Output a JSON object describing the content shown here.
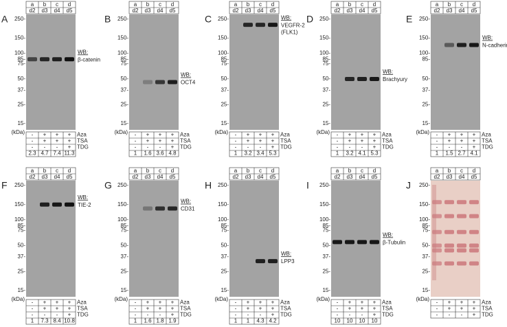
{
  "panels": [
    {
      "letter": "A",
      "lanes": [
        "a",
        "b",
        "c",
        "d"
      ],
      "days": [
        "d2",
        "d3",
        "d4",
        "d5"
      ],
      "markers": [
        "250-",
        "150-",
        "100-",
        "85-",
        "75-",
        "50-",
        "37-",
        "25-",
        "15-"
      ],
      "unit": "(kDa)",
      "wb": "WB:",
      "target": [
        "β-catenin"
      ],
      "treatments": [
        {
          "signs": [
            "-",
            "+",
            "+",
            "+"
          ],
          "label": "Aza"
        },
        {
          "signs": [
            "-",
            "+",
            "+",
            "+"
          ],
          "label": "TSA"
        },
        {
          "signs": [
            "-",
            "-",
            "-",
            "+"
          ],
          "label": "TDG"
        }
      ],
      "quant": [
        "2.3",
        "4.7",
        "7.4",
        "11.3"
      ]
    },
    {
      "letter": "B",
      "lanes": [
        "a",
        "b",
        "c",
        "d"
      ],
      "days": [
        "d2",
        "d3",
        "d4",
        "d5"
      ],
      "markers": [
        "250-",
        "150-",
        "100-",
        "85-",
        "75-",
        "50-",
        "37-",
        "25-",
        "15-"
      ],
      "unit": "(kDa)",
      "wb": "WB:",
      "target": [
        "OCT4"
      ],
      "treatments": [
        {
          "signs": [
            "-",
            "+",
            "+",
            "+"
          ],
          "label": "Aza"
        },
        {
          "signs": [
            "-",
            "+",
            "+",
            "+"
          ],
          "label": "TSA"
        },
        {
          "signs": [
            "-",
            "-",
            "-",
            "+"
          ],
          "label": "TDG"
        }
      ],
      "quant": [
        "1",
        "1.6",
        "3.6",
        "4.8"
      ]
    },
    {
      "letter": "C",
      "lanes": [
        "a",
        "b",
        "c",
        "d"
      ],
      "days": [
        "d2",
        "d3",
        "d4",
        "d5"
      ],
      "markers": [
        "250-",
        "150-",
        "100-",
        "85-",
        "75-",
        "50-",
        "37-",
        "25-",
        "15-"
      ],
      "unit": "(kDa)",
      "wb": "WB:",
      "target": [
        "VEGFR-2",
        "(FLK1)"
      ],
      "treatments": [
        {
          "signs": [
            "-",
            "+",
            "+",
            "+"
          ],
          "label": "Aza"
        },
        {
          "signs": [
            "-",
            "+",
            "+",
            "+"
          ],
          "label": "TSA"
        },
        {
          "signs": [
            "-",
            "-",
            "-",
            "+"
          ],
          "label": "TDG"
        }
      ],
      "quant": [
        "1",
        "3.2",
        "3.4",
        "5.3"
      ]
    },
    {
      "letter": "D",
      "lanes": [
        "a",
        "b",
        "c",
        "d"
      ],
      "days": [
        "d2",
        "d3",
        "d4",
        "d5"
      ],
      "markers": [
        "250-",
        "150-",
        "100-",
        "85-",
        "75-",
        "50-",
        "37-",
        "25-",
        "15-"
      ],
      "unit": "(kDa)",
      "wb": "WB:",
      "target": [
        "Brachyury"
      ],
      "treatments": [
        {
          "signs": [
            "-",
            "+",
            "+",
            "+"
          ],
          "label": "Aza"
        },
        {
          "signs": [
            "-",
            "+",
            "+",
            "+"
          ],
          "label": "TSA"
        },
        {
          "signs": [
            "-",
            "-",
            "-",
            "+"
          ],
          "label": "TDG"
        }
      ],
      "quant": [
        "1",
        "3.2",
        "4.1",
        "5.3"
      ]
    },
    {
      "letter": "E",
      "lanes": [
        "a",
        "b",
        "c",
        "d"
      ],
      "days": [
        "d2",
        "d3",
        "d4",
        "d5"
      ],
      "markers": [
        "250-",
        "150-",
        "100-",
        "85-",
        "50-",
        "37-",
        "25-",
        "15-"
      ],
      "unit": "(kDa)",
      "wb": "WB:",
      "target": [
        "N-cadherin"
      ],
      "treatments": [
        {
          "signs": [
            "-",
            "+",
            "+",
            "+"
          ],
          "label": "Aza"
        },
        {
          "signs": [
            "-",
            "+",
            "+",
            "+"
          ],
          "label": "TSA"
        },
        {
          "signs": [
            "-",
            "-",
            "-",
            "+"
          ],
          "label": "TDG"
        }
      ],
      "quant": [
        "1",
        "1.5",
        "2.7",
        "4.1"
      ]
    },
    {
      "letter": "F",
      "lanes": [
        "a",
        "b",
        "c",
        "d"
      ],
      "days": [
        "d2",
        "d3",
        "d4",
        "d5"
      ],
      "markers": [
        "250-",
        "150-",
        "100-",
        "85-",
        "75-",
        "50-",
        "37-",
        "25-",
        "15-"
      ],
      "unit": "(kDa)",
      "wb": "WB:",
      "target": [
        "TIE-2"
      ],
      "treatments": [
        {
          "signs": [
            "-",
            "+",
            "+",
            "+"
          ],
          "label": "Aza"
        },
        {
          "signs": [
            "-",
            "+",
            "+",
            "+"
          ],
          "label": "TSA"
        },
        {
          "signs": [
            "-",
            "-",
            "-",
            "+"
          ],
          "label": "TDG"
        }
      ],
      "quant": [
        "1",
        "7.3",
        "8.4",
        "10.8"
      ]
    },
    {
      "letter": "G",
      "lanes": [
        "a",
        "b",
        "c",
        "d"
      ],
      "days": [
        "d2",
        "d3",
        "d4",
        "d5"
      ],
      "markers": [
        "250-",
        "150-",
        "100-",
        "85-",
        "75-",
        "50-",
        "37-",
        "25-",
        "15-"
      ],
      "unit": "(kDa)",
      "wb": "WB:",
      "target": [
        "CD31"
      ],
      "treatments": [
        {
          "signs": [
            "-",
            "+",
            "+",
            "+"
          ],
          "label": "Aza"
        },
        {
          "signs": [
            "-",
            "+",
            "+",
            "+"
          ],
          "label": "TSA"
        },
        {
          "signs": [
            "-",
            "-",
            "-",
            "+"
          ],
          "label": "TDG"
        }
      ],
      "quant": [
        "1",
        "1.6",
        "1.8",
        "1.9"
      ]
    },
    {
      "letter": "H",
      "lanes": [
        "a",
        "b",
        "c",
        "d"
      ],
      "days": [
        "d2",
        "d3",
        "d4",
        "d5"
      ],
      "markers": [
        "250-",
        "150-",
        "100-",
        "85-",
        "75-",
        "50-",
        "37-",
        "25-",
        "15-"
      ],
      "unit": "(kDa)",
      "wb": "WB:",
      "target": [
        "LPP3"
      ],
      "treatments": [
        {
          "signs": [
            "-",
            "+",
            "+",
            "+"
          ],
          "label": "Aza"
        },
        {
          "signs": [
            "-",
            "+",
            "+",
            "+"
          ],
          "label": "TSA"
        },
        {
          "signs": [
            "-",
            "-",
            "-",
            "+"
          ],
          "label": "TDG"
        }
      ],
      "quant": [
        "1",
        "1",
        "4.3",
        "4.2"
      ]
    },
    {
      "letter": "I",
      "lanes": [
        "a",
        "b",
        "c",
        "d"
      ],
      "days": [
        "d2",
        "d3",
        "d4",
        "d5"
      ],
      "markers": [
        "250-",
        "150-",
        "100-",
        "85-",
        "75-",
        "50-",
        "37-",
        "25-",
        "15-"
      ],
      "unit": "(kDa)",
      "wb": "WB:",
      "target": [
        "β-Tubulin"
      ],
      "treatments": [
        {
          "signs": [
            "-",
            "+",
            "+",
            "+"
          ],
          "label": "Aza"
        },
        {
          "signs": [
            "-",
            "+",
            "+",
            "+"
          ],
          "label": "TSA"
        },
        {
          "signs": [
            "-",
            "-",
            "-",
            "+"
          ],
          "label": "TDG"
        }
      ],
      "quant": [
        "10",
        "10",
        "10",
        "10"
      ]
    },
    {
      "letter": "J",
      "lanes": [
        "a",
        "b",
        "c",
        "d"
      ],
      "days": [
        "d2",
        "d3",
        "d4",
        "d5"
      ],
      "markers": [
        "250-",
        "150-",
        "100-",
        "85-",
        "75-",
        "50-",
        "37-",
        "25-",
        "15-"
      ],
      "unit": "(kDa)",
      "treatments": [
        {
          "signs": [
            "-",
            "+",
            "+",
            "+"
          ],
          "label": "Aza"
        },
        {
          "signs": [
            "-",
            "+",
            "+",
            "+"
          ],
          "label": "TSA"
        },
        {
          "signs": [
            "-",
            "-",
            "-",
            "+"
          ],
          "label": "TDG"
        }
      ]
    }
  ]
}
